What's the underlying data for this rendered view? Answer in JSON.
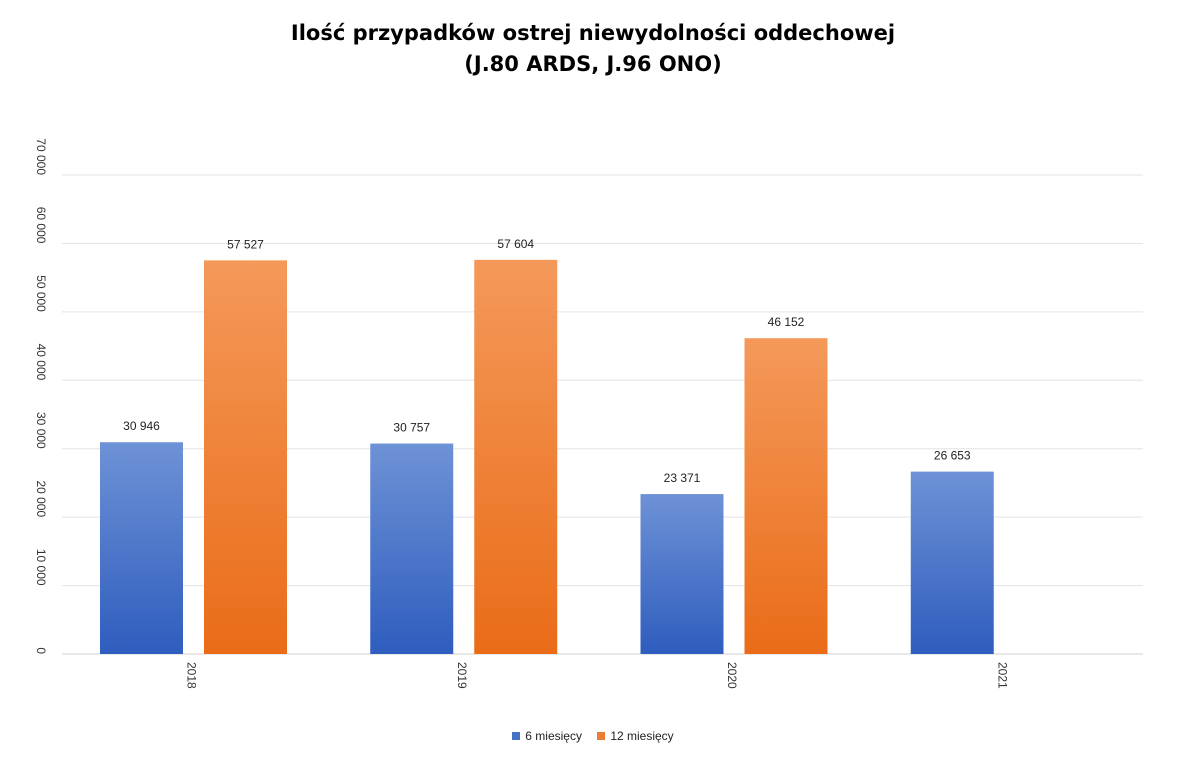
{
  "chart_data": {
    "type": "bar",
    "title_lines": [
      "Ilość przypadków ostrej niewydolności oddechowej",
      "(J.80 ARDS, J.96 ONO)"
    ],
    "xlabel": "",
    "ylabel": "",
    "categories": [
      "2018",
      "2019",
      "2020",
      "2021"
    ],
    "series": [
      {
        "name": "6 miesięcy",
        "values": [
          30946,
          30757,
          23371,
          26653
        ],
        "labels": [
          "30 946",
          "30 757",
          "23 371",
          "26 653"
        ],
        "color": "#4472C4"
      },
      {
        "name": "12 miesięcy",
        "values": [
          57527,
          57604,
          46152,
          null
        ],
        "labels": [
          "57 527",
          "57 604",
          "46 152",
          ""
        ],
        "color": "#ED7D31"
      }
    ],
    "ylim": [
      0,
      70000
    ],
    "yticks": [
      0,
      10000,
      20000,
      30000,
      40000,
      50000,
      60000,
      70000
    ],
    "ytick_labels": [
      "0",
      "10 000",
      "20 000",
      "30 000",
      "40 000",
      "50 000",
      "60 000",
      "70 000"
    ],
    "grid": true,
    "legend_position": "bottom"
  }
}
